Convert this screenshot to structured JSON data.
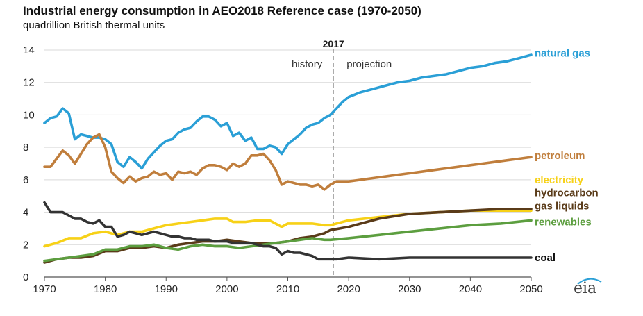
{
  "title": "Industrial energy consumption in AEO2018 Reference case (1970-2050)",
  "subtitle": "quadrillion British thermal units",
  "logo_text": "eia",
  "annotations": {
    "divider_year_label": "2017",
    "history": "history",
    "projection": "projection"
  },
  "chart_data": {
    "type": "line",
    "title": "Industrial energy consumption in AEO2018 Reference case (1970-2050)",
    "subtitle": "quadrillion British thermal units",
    "xlabel": "",
    "ylabel": "",
    "xlim": [
      1970,
      2050
    ],
    "ylim": [
      0,
      14
    ],
    "x_ticks": [
      1970,
      1980,
      1990,
      2000,
      2010,
      2020,
      2030,
      2040,
      2050
    ],
    "y_ticks": [
      0,
      2,
      4,
      6,
      8,
      10,
      12,
      14
    ],
    "grid": "horizontal",
    "divider_year": 2017.5,
    "legend": "direct labels at right end of lines",
    "series": [
      {
        "name": "natural gas",
        "color": "#2a9fd6",
        "points": [
          [
            1970,
            9.5
          ],
          [
            1971,
            9.8
          ],
          [
            1972,
            9.9
          ],
          [
            1973,
            10.4
          ],
          [
            1974,
            10.1
          ],
          [
            1975,
            8.5
          ],
          [
            1976,
            8.8
          ],
          [
            1977,
            8.7
          ],
          [
            1978,
            8.6
          ],
          [
            1979,
            8.6
          ],
          [
            1980,
            8.5
          ],
          [
            1981,
            8.2
          ],
          [
            1982,
            7.1
          ],
          [
            1983,
            6.8
          ],
          [
            1984,
            7.4
          ],
          [
            1985,
            7.1
          ],
          [
            1986,
            6.7
          ],
          [
            1987,
            7.3
          ],
          [
            1988,
            7.7
          ],
          [
            1989,
            8.1
          ],
          [
            1990,
            8.4
          ],
          [
            1991,
            8.5
          ],
          [
            1992,
            8.9
          ],
          [
            1993,
            9.1
          ],
          [
            1994,
            9.2
          ],
          [
            1995,
            9.6
          ],
          [
            1996,
            9.9
          ],
          [
            1997,
            9.9
          ],
          [
            1998,
            9.7
          ],
          [
            1999,
            9.3
          ],
          [
            2000,
            9.5
          ],
          [
            2001,
            8.7
          ],
          [
            2002,
            8.9
          ],
          [
            2003,
            8.4
          ],
          [
            2004,
            8.6
          ],
          [
            2005,
            7.9
          ],
          [
            2006,
            7.9
          ],
          [
            2007,
            8.1
          ],
          [
            2008,
            8.0
          ],
          [
            2009,
            7.6
          ],
          [
            2010,
            8.2
          ],
          [
            2011,
            8.5
          ],
          [
            2012,
            8.8
          ],
          [
            2013,
            9.2
          ],
          [
            2014,
            9.4
          ],
          [
            2015,
            9.5
          ],
          [
            2016,
            9.8
          ],
          [
            2017,
            10.0
          ],
          [
            2018,
            10.4
          ],
          [
            2019,
            10.8
          ],
          [
            2020,
            11.1
          ],
          [
            2022,
            11.4
          ],
          [
            2024,
            11.6
          ],
          [
            2026,
            11.8
          ],
          [
            2028,
            12.0
          ],
          [
            2030,
            12.1
          ],
          [
            2032,
            12.3
          ],
          [
            2034,
            12.4
          ],
          [
            2036,
            12.5
          ],
          [
            2038,
            12.7
          ],
          [
            2040,
            12.9
          ],
          [
            2042,
            13.0
          ],
          [
            2044,
            13.2
          ],
          [
            2046,
            13.3
          ],
          [
            2048,
            13.5
          ],
          [
            2050,
            13.7
          ]
        ]
      },
      {
        "name": "petroleum",
        "color": "#c07e3c",
        "points": [
          [
            1970,
            6.8
          ],
          [
            1971,
            6.8
          ],
          [
            1972,
            7.3
          ],
          [
            1973,
            7.8
          ],
          [
            1974,
            7.5
          ],
          [
            1975,
            7.0
          ],
          [
            1976,
            7.6
          ],
          [
            1977,
            8.2
          ],
          [
            1978,
            8.6
          ],
          [
            1979,
            8.8
          ],
          [
            1980,
            8.0
          ],
          [
            1981,
            6.5
          ],
          [
            1982,
            6.1
          ],
          [
            1983,
            5.8
          ],
          [
            1984,
            6.2
          ],
          [
            1985,
            5.9
          ],
          [
            1986,
            6.1
          ],
          [
            1987,
            6.2
          ],
          [
            1988,
            6.5
          ],
          [
            1989,
            6.3
          ],
          [
            1990,
            6.4
          ],
          [
            1991,
            6.0
          ],
          [
            1992,
            6.5
          ],
          [
            1993,
            6.4
          ],
          [
            1994,
            6.5
          ],
          [
            1995,
            6.3
          ],
          [
            1996,
            6.7
          ],
          [
            1997,
            6.9
          ],
          [
            1998,
            6.9
          ],
          [
            1999,
            6.8
          ],
          [
            2000,
            6.6
          ],
          [
            2001,
            7.0
          ],
          [
            2002,
            6.8
          ],
          [
            2003,
            7.0
          ],
          [
            2004,
            7.5
          ],
          [
            2005,
            7.5
          ],
          [
            2006,
            7.6
          ],
          [
            2007,
            7.2
          ],
          [
            2008,
            6.6
          ],
          [
            2009,
            5.7
          ],
          [
            2010,
            5.9
          ],
          [
            2011,
            5.8
          ],
          [
            2012,
            5.7
          ],
          [
            2013,
            5.7
          ],
          [
            2014,
            5.6
          ],
          [
            2015,
            5.7
          ],
          [
            2016,
            5.4
          ],
          [
            2017,
            5.7
          ],
          [
            2018,
            5.9
          ],
          [
            2020,
            5.9
          ],
          [
            2022,
            6.0
          ],
          [
            2024,
            6.1
          ],
          [
            2026,
            6.2
          ],
          [
            2028,
            6.3
          ],
          [
            2030,
            6.4
          ],
          [
            2032,
            6.5
          ],
          [
            2034,
            6.6
          ],
          [
            2036,
            6.7
          ],
          [
            2038,
            6.8
          ],
          [
            2040,
            6.9
          ],
          [
            2042,
            7.0
          ],
          [
            2044,
            7.1
          ],
          [
            2046,
            7.2
          ],
          [
            2048,
            7.3
          ],
          [
            2050,
            7.4
          ]
        ]
      },
      {
        "name": "electricity",
        "color": "#f7d117",
        "points": [
          [
            1970,
            1.9
          ],
          [
            1972,
            2.1
          ],
          [
            1974,
            2.4
          ],
          [
            1976,
            2.4
          ],
          [
            1978,
            2.7
          ],
          [
            1980,
            2.8
          ],
          [
            1982,
            2.6
          ],
          [
            1984,
            2.8
          ],
          [
            1986,
            2.8
          ],
          [
            1988,
            3.0
          ],
          [
            1990,
            3.2
          ],
          [
            1992,
            3.3
          ],
          [
            1994,
            3.4
          ],
          [
            1996,
            3.5
          ],
          [
            1998,
            3.6
          ],
          [
            2000,
            3.6
          ],
          [
            2001,
            3.4
          ],
          [
            2003,
            3.4
          ],
          [
            2005,
            3.5
          ],
          [
            2007,
            3.5
          ],
          [
            2009,
            3.1
          ],
          [
            2010,
            3.3
          ],
          [
            2012,
            3.3
          ],
          [
            2014,
            3.3
          ],
          [
            2016,
            3.2
          ],
          [
            2017,
            3.2
          ],
          [
            2020,
            3.5
          ],
          [
            2025,
            3.7
          ],
          [
            2030,
            3.9
          ],
          [
            2035,
            4.0
          ],
          [
            2040,
            4.1
          ],
          [
            2045,
            4.1
          ],
          [
            2050,
            4.1
          ]
        ]
      },
      {
        "name": "hydrocarbon gas liquids",
        "color": "#5a3b19",
        "points": [
          [
            1970,
            0.9
          ],
          [
            1972,
            1.1
          ],
          [
            1974,
            1.2
          ],
          [
            1976,
            1.2
          ],
          [
            1978,
            1.3
          ],
          [
            1980,
            1.6
          ],
          [
            1982,
            1.6
          ],
          [
            1984,
            1.8
          ],
          [
            1986,
            1.8
          ],
          [
            1988,
            1.9
          ],
          [
            1990,
            1.8
          ],
          [
            1992,
            2.0
          ],
          [
            1994,
            2.1
          ],
          [
            1996,
            2.2
          ],
          [
            1998,
            2.2
          ],
          [
            2000,
            2.3
          ],
          [
            2002,
            2.2
          ],
          [
            2004,
            2.1
          ],
          [
            2006,
            2.1
          ],
          [
            2008,
            2.1
          ],
          [
            2010,
            2.2
          ],
          [
            2012,
            2.4
          ],
          [
            2014,
            2.5
          ],
          [
            2016,
            2.7
          ],
          [
            2017,
            2.9
          ],
          [
            2020,
            3.1
          ],
          [
            2025,
            3.6
          ],
          [
            2030,
            3.9
          ],
          [
            2035,
            4.0
          ],
          [
            2040,
            4.1
          ],
          [
            2045,
            4.2
          ],
          [
            2050,
            4.2
          ]
        ]
      },
      {
        "name": "renewables",
        "color": "#5c9e3f",
        "points": [
          [
            1970,
            1.0
          ],
          [
            1972,
            1.1
          ],
          [
            1974,
            1.2
          ],
          [
            1976,
            1.3
          ],
          [
            1978,
            1.4
          ],
          [
            1980,
            1.7
          ],
          [
            1982,
            1.7
          ],
          [
            1984,
            1.9
          ],
          [
            1986,
            1.9
          ],
          [
            1988,
            2.0
          ],
          [
            1990,
            1.8
          ],
          [
            1992,
            1.7
          ],
          [
            1994,
            1.9
          ],
          [
            1996,
            2.0
          ],
          [
            1998,
            1.9
          ],
          [
            2000,
            1.9
          ],
          [
            2002,
            1.8
          ],
          [
            2004,
            1.9
          ],
          [
            2006,
            2.0
          ],
          [
            2008,
            2.1
          ],
          [
            2010,
            2.2
          ],
          [
            2012,
            2.3
          ],
          [
            2014,
            2.4
          ],
          [
            2016,
            2.3
          ],
          [
            2017,
            2.3
          ],
          [
            2020,
            2.4
          ],
          [
            2025,
            2.6
          ],
          [
            2030,
            2.8
          ],
          [
            2035,
            3.0
          ],
          [
            2040,
            3.2
          ],
          [
            2045,
            3.3
          ],
          [
            2050,
            3.5
          ]
        ]
      },
      {
        "name": "coal",
        "color": "#333333",
        "points": [
          [
            1970,
            4.6
          ],
          [
            1971,
            4.0
          ],
          [
            1972,
            4.0
          ],
          [
            1973,
            4.0
          ],
          [
            1974,
            3.8
          ],
          [
            1975,
            3.6
          ],
          [
            1976,
            3.6
          ],
          [
            1977,
            3.4
          ],
          [
            1978,
            3.3
          ],
          [
            1979,
            3.5
          ],
          [
            1980,
            3.1
          ],
          [
            1981,
            3.1
          ],
          [
            1982,
            2.5
          ],
          [
            1983,
            2.6
          ],
          [
            1984,
            2.8
          ],
          [
            1985,
            2.7
          ],
          [
            1986,
            2.6
          ],
          [
            1987,
            2.7
          ],
          [
            1988,
            2.8
          ],
          [
            1989,
            2.7
          ],
          [
            1990,
            2.6
          ],
          [
            1991,
            2.5
          ],
          [
            1992,
            2.5
          ],
          [
            1993,
            2.4
          ],
          [
            1994,
            2.4
          ],
          [
            1995,
            2.3
          ],
          [
            1996,
            2.3
          ],
          [
            1997,
            2.3
          ],
          [
            1998,
            2.2
          ],
          [
            1999,
            2.2
          ],
          [
            2000,
            2.2
          ],
          [
            2001,
            2.1
          ],
          [
            2002,
            2.1
          ],
          [
            2003,
            2.1
          ],
          [
            2004,
            2.1
          ],
          [
            2005,
            2.0
          ],
          [
            2006,
            1.9
          ],
          [
            2007,
            1.9
          ],
          [
            2008,
            1.8
          ],
          [
            2009,
            1.4
          ],
          [
            2010,
            1.6
          ],
          [
            2011,
            1.5
          ],
          [
            2012,
            1.5
          ],
          [
            2013,
            1.4
          ],
          [
            2014,
            1.3
          ],
          [
            2015,
            1.1
          ],
          [
            2016,
            1.1
          ],
          [
            2017,
            1.1
          ],
          [
            2018,
            1.1
          ],
          [
            2020,
            1.2
          ],
          [
            2025,
            1.1
          ],
          [
            2030,
            1.2
          ],
          [
            2035,
            1.2
          ],
          [
            2040,
            1.2
          ],
          [
            2045,
            1.2
          ],
          [
            2050,
            1.2
          ]
        ]
      }
    ]
  },
  "series_labels": [
    {
      "key": "natural_gas",
      "lines": [
        "natural gas"
      ],
      "color": "#2a9fd6",
      "anchor_y": 13.8
    },
    {
      "key": "petroleum",
      "lines": [
        "petroleum"
      ],
      "color": "#c07e3c",
      "anchor_y": 7.5
    },
    {
      "key": "electricity",
      "lines": [
        "electricity"
      ],
      "color": "#f7d117",
      "anchor_y": 6.0
    },
    {
      "key": "hydrocarbon_gas_liquids",
      "lines": [
        "hydrocarbon",
        "gas liquids"
      ],
      "color": "#5a3b19",
      "anchor_y": 5.2
    },
    {
      "key": "renewables",
      "lines": [
        "renewables"
      ],
      "color": "#5c9e3f",
      "anchor_y": 3.4
    },
    {
      "key": "coal",
      "lines": [
        "coal"
      ],
      "color": "#111111",
      "anchor_y": 1.2
    }
  ]
}
